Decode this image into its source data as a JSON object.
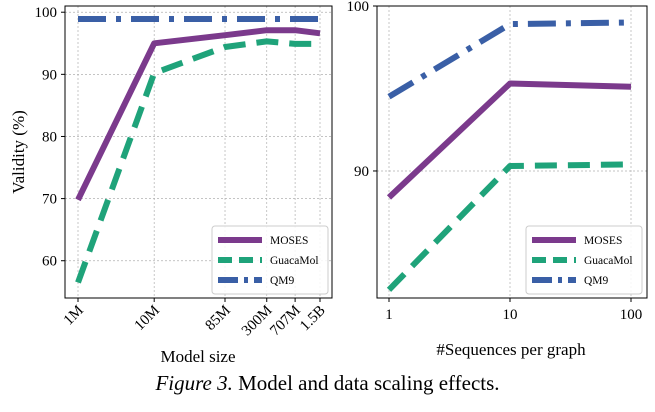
{
  "caption": {
    "label": "Figure 3.",
    "text": "Model and data scaling effects."
  },
  "colors": {
    "MOSES": "#7b3a8c",
    "GuacaMol": "#1fa37a",
    "QM9": "#3a5fa6"
  },
  "chart_data": [
    {
      "type": "line",
      "xscale": "log",
      "xlabel": "Model size",
      "ylabel": "Validity (%)",
      "x": [
        1000000,
        10000000,
        85000000,
        300000000,
        707000000,
        1500000000
      ],
      "x_tick_labels": [
        "1M",
        "10M",
        "85M",
        "300M",
        "707M",
        "1.5B"
      ],
      "ylim": [
        54,
        101
      ],
      "y_ticks": [
        60,
        70,
        80,
        90,
        100
      ],
      "grid": true,
      "legend_position": "lower-right",
      "series": [
        {
          "name": "MOSES",
          "style": "solid",
          "values": [
            69.8,
            95.0,
            96.3,
            97.1,
            97.1,
            96.6
          ]
        },
        {
          "name": "GuacaMol",
          "style": "dashed",
          "values": [
            56.5,
            90.2,
            94.4,
            95.3,
            94.9,
            94.9
          ]
        },
        {
          "name": "QM9",
          "style": "dashdot",
          "values": [
            98.9,
            98.9,
            98.9,
            98.9,
            98.9,
            98.9
          ]
        }
      ]
    },
    {
      "type": "line",
      "xscale": "log",
      "xlabel": "#Sequences per graph",
      "ylabel": "",
      "x": [
        1,
        10,
        100
      ],
      "x_tick_labels": [
        "1",
        "10",
        "100"
      ],
      "ylim": [
        82.3,
        100
      ],
      "y_ticks": [
        90,
        100
      ],
      "grid": true,
      "legend_position": "lower-right",
      "series": [
        {
          "name": "MOSES",
          "style": "solid",
          "values": [
            88.4,
            95.3,
            95.1
          ]
        },
        {
          "name": "GuacaMol",
          "style": "dashed",
          "values": [
            82.8,
            90.3,
            90.4
          ]
        },
        {
          "name": "QM9",
          "style": "dashdot",
          "values": [
            94.5,
            98.9,
            99.0
          ]
        }
      ]
    }
  ]
}
